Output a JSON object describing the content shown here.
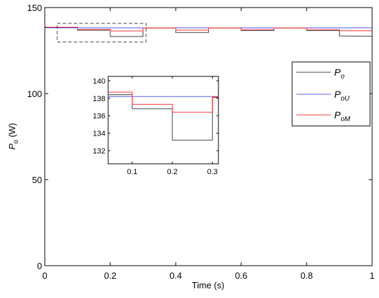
{
  "chart_data": [
    {
      "type": "line",
      "xlabel": "Time (s)",
      "ylabel_main": "P",
      "ylabel_sub": "o",
      "ylabel_unit": " (W)",
      "xlim": [
        0,
        1
      ],
      "ylim": [
        0,
        150
      ],
      "x_ticks": [
        "0",
        "0.2",
        "0.4",
        "0.6",
        "0.8",
        "1"
      ],
      "y_ticks": [
        "0",
        "50",
        "100",
        "150"
      ],
      "legend_position": "right",
      "grid": false,
      "legend": [
        {
          "main": "P",
          "sub": "o",
          "color": "#404040"
        },
        {
          "main": "P",
          "sub": "oU",
          "color": "#5a5aff"
        },
        {
          "main": "P",
          "sub": "oM",
          "color": "#ff3030"
        }
      ],
      "series": [
        {
          "color": "#404040",
          "x": [
            0,
            0.002,
            0.004,
            0.1,
            0.1,
            0.2,
            0.2,
            0.3,
            0.3,
            0.4,
            0.4,
            0.5,
            0.5,
            0.6,
            0.6,
            0.7,
            0.7,
            0.8,
            0.8,
            0.9,
            0.9,
            1.0
          ],
          "y": [
            140,
            138.6,
            138.4,
            138.4,
            136.8,
            136.8,
            133.2,
            133.2,
            138.1,
            138.1,
            135.5,
            135.5,
            138.1,
            138.1,
            136.6,
            136.6,
            138.1,
            138.1,
            136.6,
            136.6,
            133.5,
            133.3
          ]
        },
        {
          "color": "#5a5aff",
          "x": [
            0,
            1.0
          ],
          "y": [
            138.2,
            138.2
          ]
        },
        {
          "color": "#ff3030",
          "x": [
            0,
            0.002,
            0.004,
            0.1,
            0.1,
            0.2,
            0.2,
            0.3,
            0.3,
            0.4,
            0.4,
            0.5,
            0.5,
            0.6,
            0.6,
            0.7,
            0.7,
            0.8,
            0.8,
            0.9,
            0.9,
            1.0
          ],
          "y": [
            140,
            138.7,
            138.6,
            138.6,
            137.3,
            137.3,
            136.4,
            136.4,
            138.2,
            138.2,
            136.9,
            136.9,
            138.2,
            138.2,
            137.2,
            137.2,
            138.2,
            138.2,
            137.2,
            137.2,
            136.5,
            136.5
          ]
        }
      ]
    },
    {
      "type": "line",
      "role": "inset",
      "xlim": [
        0.04,
        0.315
      ],
      "ylim": [
        130.5,
        140.5
      ],
      "x_ticks": [
        "0.1",
        "0.2",
        "0.3"
      ],
      "y_ticks": [
        "132",
        "134",
        "136",
        "138",
        "140"
      ],
      "series": [
        {
          "color": "#404040",
          "x": [
            0.04,
            0.1,
            0.1,
            0.2,
            0.2,
            0.3,
            0.3,
            0.302,
            0.315
          ],
          "y": [
            138.4,
            138.4,
            136.8,
            136.8,
            133.2,
            133.2,
            138.0,
            138.1,
            138.1
          ]
        },
        {
          "color": "#5a5aff",
          "x": [
            0.04,
            0.315
          ],
          "y": [
            138.2,
            138.2
          ]
        },
        {
          "color": "#ff3030",
          "x": [
            0.04,
            0.1,
            0.1,
            0.2,
            0.2,
            0.3,
            0.3,
            0.315
          ],
          "y": [
            138.7,
            138.7,
            137.3,
            137.3,
            136.4,
            136.4,
            138.2,
            138.2
          ]
        }
      ]
    }
  ]
}
